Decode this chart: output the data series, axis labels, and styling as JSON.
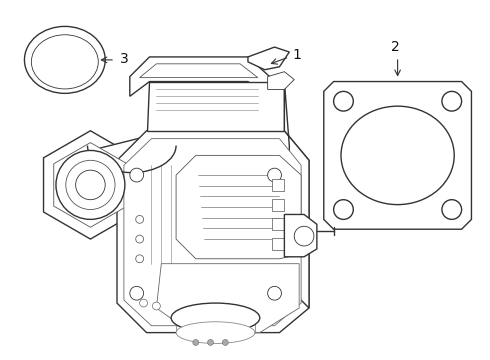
{
  "bg_color": "#ffffff",
  "line_color": "#333333",
  "lw": 1.0,
  "tlw": 0.6,
  "label_fontsize": 10,
  "label_color": "#111111"
}
